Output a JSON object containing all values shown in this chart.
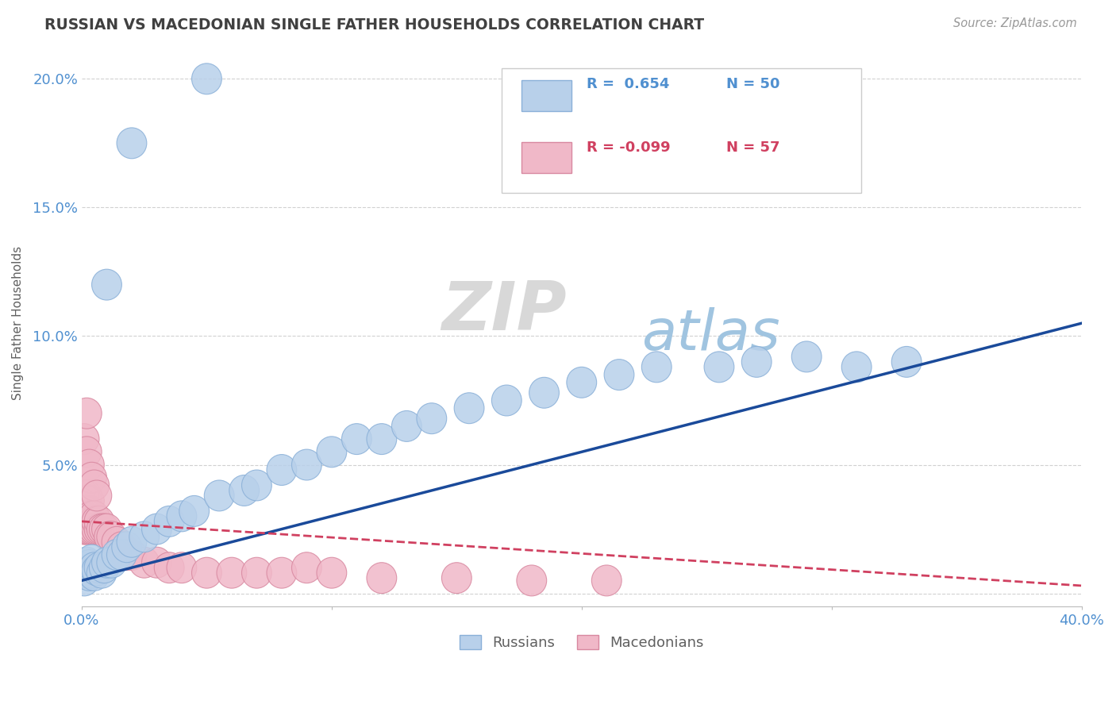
{
  "title": "RUSSIAN VS MACEDONIAN SINGLE FATHER HOUSEHOLDS CORRELATION CHART",
  "source_text": "Source: ZipAtlas.com",
  "ylabel": "Single Father Households",
  "yticks": [
    0.0,
    0.05,
    0.1,
    0.15,
    0.2
  ],
  "ytick_labels": [
    "",
    "5.0%",
    "10.0%",
    "15.0%",
    "20.0%"
  ],
  "xlim": [
    0.0,
    0.4
  ],
  "ylim": [
    -0.005,
    0.215
  ],
  "legend_r_russian": "R =  0.654",
  "legend_n_russian": "N = 50",
  "legend_r_macedonian": "R = -0.099",
  "legend_n_macedonian": "N = 57",
  "color_russian": "#b8d0ea",
  "color_russian_edge": "#8ab0d8",
  "color_russian_line": "#1a4a9a",
  "color_macedonian": "#f0b8c8",
  "color_macedonian_edge": "#d888a0",
  "color_macedonian_line": "#d04060",
  "watermark_zip": "ZIP",
  "watermark_atlas": "atlas",
  "watermark_color_zip": "#d8d8d8",
  "watermark_color_atlas": "#a0c4e0",
  "background_color": "#ffffff",
  "grid_color": "#cccccc",
  "title_color": "#404040",
  "axis_label_color": "#5090d0",
  "russian_x": [
    0.001,
    0.001,
    0.002,
    0.002,
    0.003,
    0.003,
    0.003,
    0.004,
    0.004,
    0.005,
    0.005,
    0.006,
    0.007,
    0.008,
    0.009,
    0.01,
    0.012,
    0.014,
    0.016,
    0.018,
    0.02,
    0.025,
    0.03,
    0.035,
    0.04,
    0.045,
    0.055,
    0.065,
    0.07,
    0.08,
    0.09,
    0.1,
    0.11,
    0.12,
    0.13,
    0.14,
    0.155,
    0.17,
    0.185,
    0.2,
    0.215,
    0.23,
    0.255,
    0.27,
    0.29,
    0.31,
    0.33,
    0.01,
    0.02,
    0.05
  ],
  "russian_y": [
    0.005,
    0.01,
    0.008,
    0.012,
    0.007,
    0.009,
    0.011,
    0.008,
    0.013,
    0.007,
    0.01,
    0.009,
    0.01,
    0.008,
    0.01,
    0.012,
    0.012,
    0.015,
    0.015,
    0.018,
    0.02,
    0.022,
    0.025,
    0.028,
    0.03,
    0.032,
    0.038,
    0.04,
    0.042,
    0.048,
    0.05,
    0.055,
    0.06,
    0.06,
    0.065,
    0.068,
    0.072,
    0.075,
    0.078,
    0.082,
    0.085,
    0.088,
    0.088,
    0.09,
    0.092,
    0.088,
    0.09,
    0.12,
    0.175,
    0.2
  ],
  "macedonian_x": [
    0.0,
    0.0,
    0.001,
    0.001,
    0.001,
    0.001,
    0.002,
    0.002,
    0.002,
    0.002,
    0.002,
    0.003,
    0.003,
    0.003,
    0.003,
    0.003,
    0.004,
    0.004,
    0.004,
    0.005,
    0.005,
    0.005,
    0.006,
    0.006,
    0.007,
    0.007,
    0.008,
    0.009,
    0.01,
    0.011,
    0.012,
    0.014,
    0.016,
    0.018,
    0.02,
    0.025,
    0.03,
    0.035,
    0.04,
    0.05,
    0.06,
    0.07,
    0.08,
    0.09,
    0.1,
    0.12,
    0.15,
    0.18,
    0.21,
    0.001,
    0.002,
    0.003,
    0.004,
    0.005,
    0.006,
    0.002,
    0.003
  ],
  "macedonian_y": [
    0.03,
    0.035,
    0.025,
    0.03,
    0.032,
    0.038,
    0.025,
    0.028,
    0.032,
    0.036,
    0.038,
    0.025,
    0.028,
    0.03,
    0.032,
    0.036,
    0.025,
    0.028,
    0.03,
    0.025,
    0.028,
    0.03,
    0.025,
    0.028,
    0.025,
    0.028,
    0.025,
    0.025,
    0.025,
    0.022,
    0.022,
    0.02,
    0.018,
    0.015,
    0.015,
    0.012,
    0.012,
    0.01,
    0.01,
    0.008,
    0.008,
    0.008,
    0.008,
    0.01,
    0.008,
    0.006,
    0.006,
    0.005,
    0.005,
    0.06,
    0.055,
    0.05,
    0.045,
    0.042,
    0.038,
    0.07,
    0.008
  ],
  "russian_line_x0": 0.0,
  "russian_line_y0": 0.005,
  "russian_line_x1": 0.4,
  "russian_line_y1": 0.105,
  "mac_line_x0": 0.0,
  "mac_line_y0": 0.028,
  "mac_line_x1": 0.4,
  "mac_line_y1": 0.003
}
